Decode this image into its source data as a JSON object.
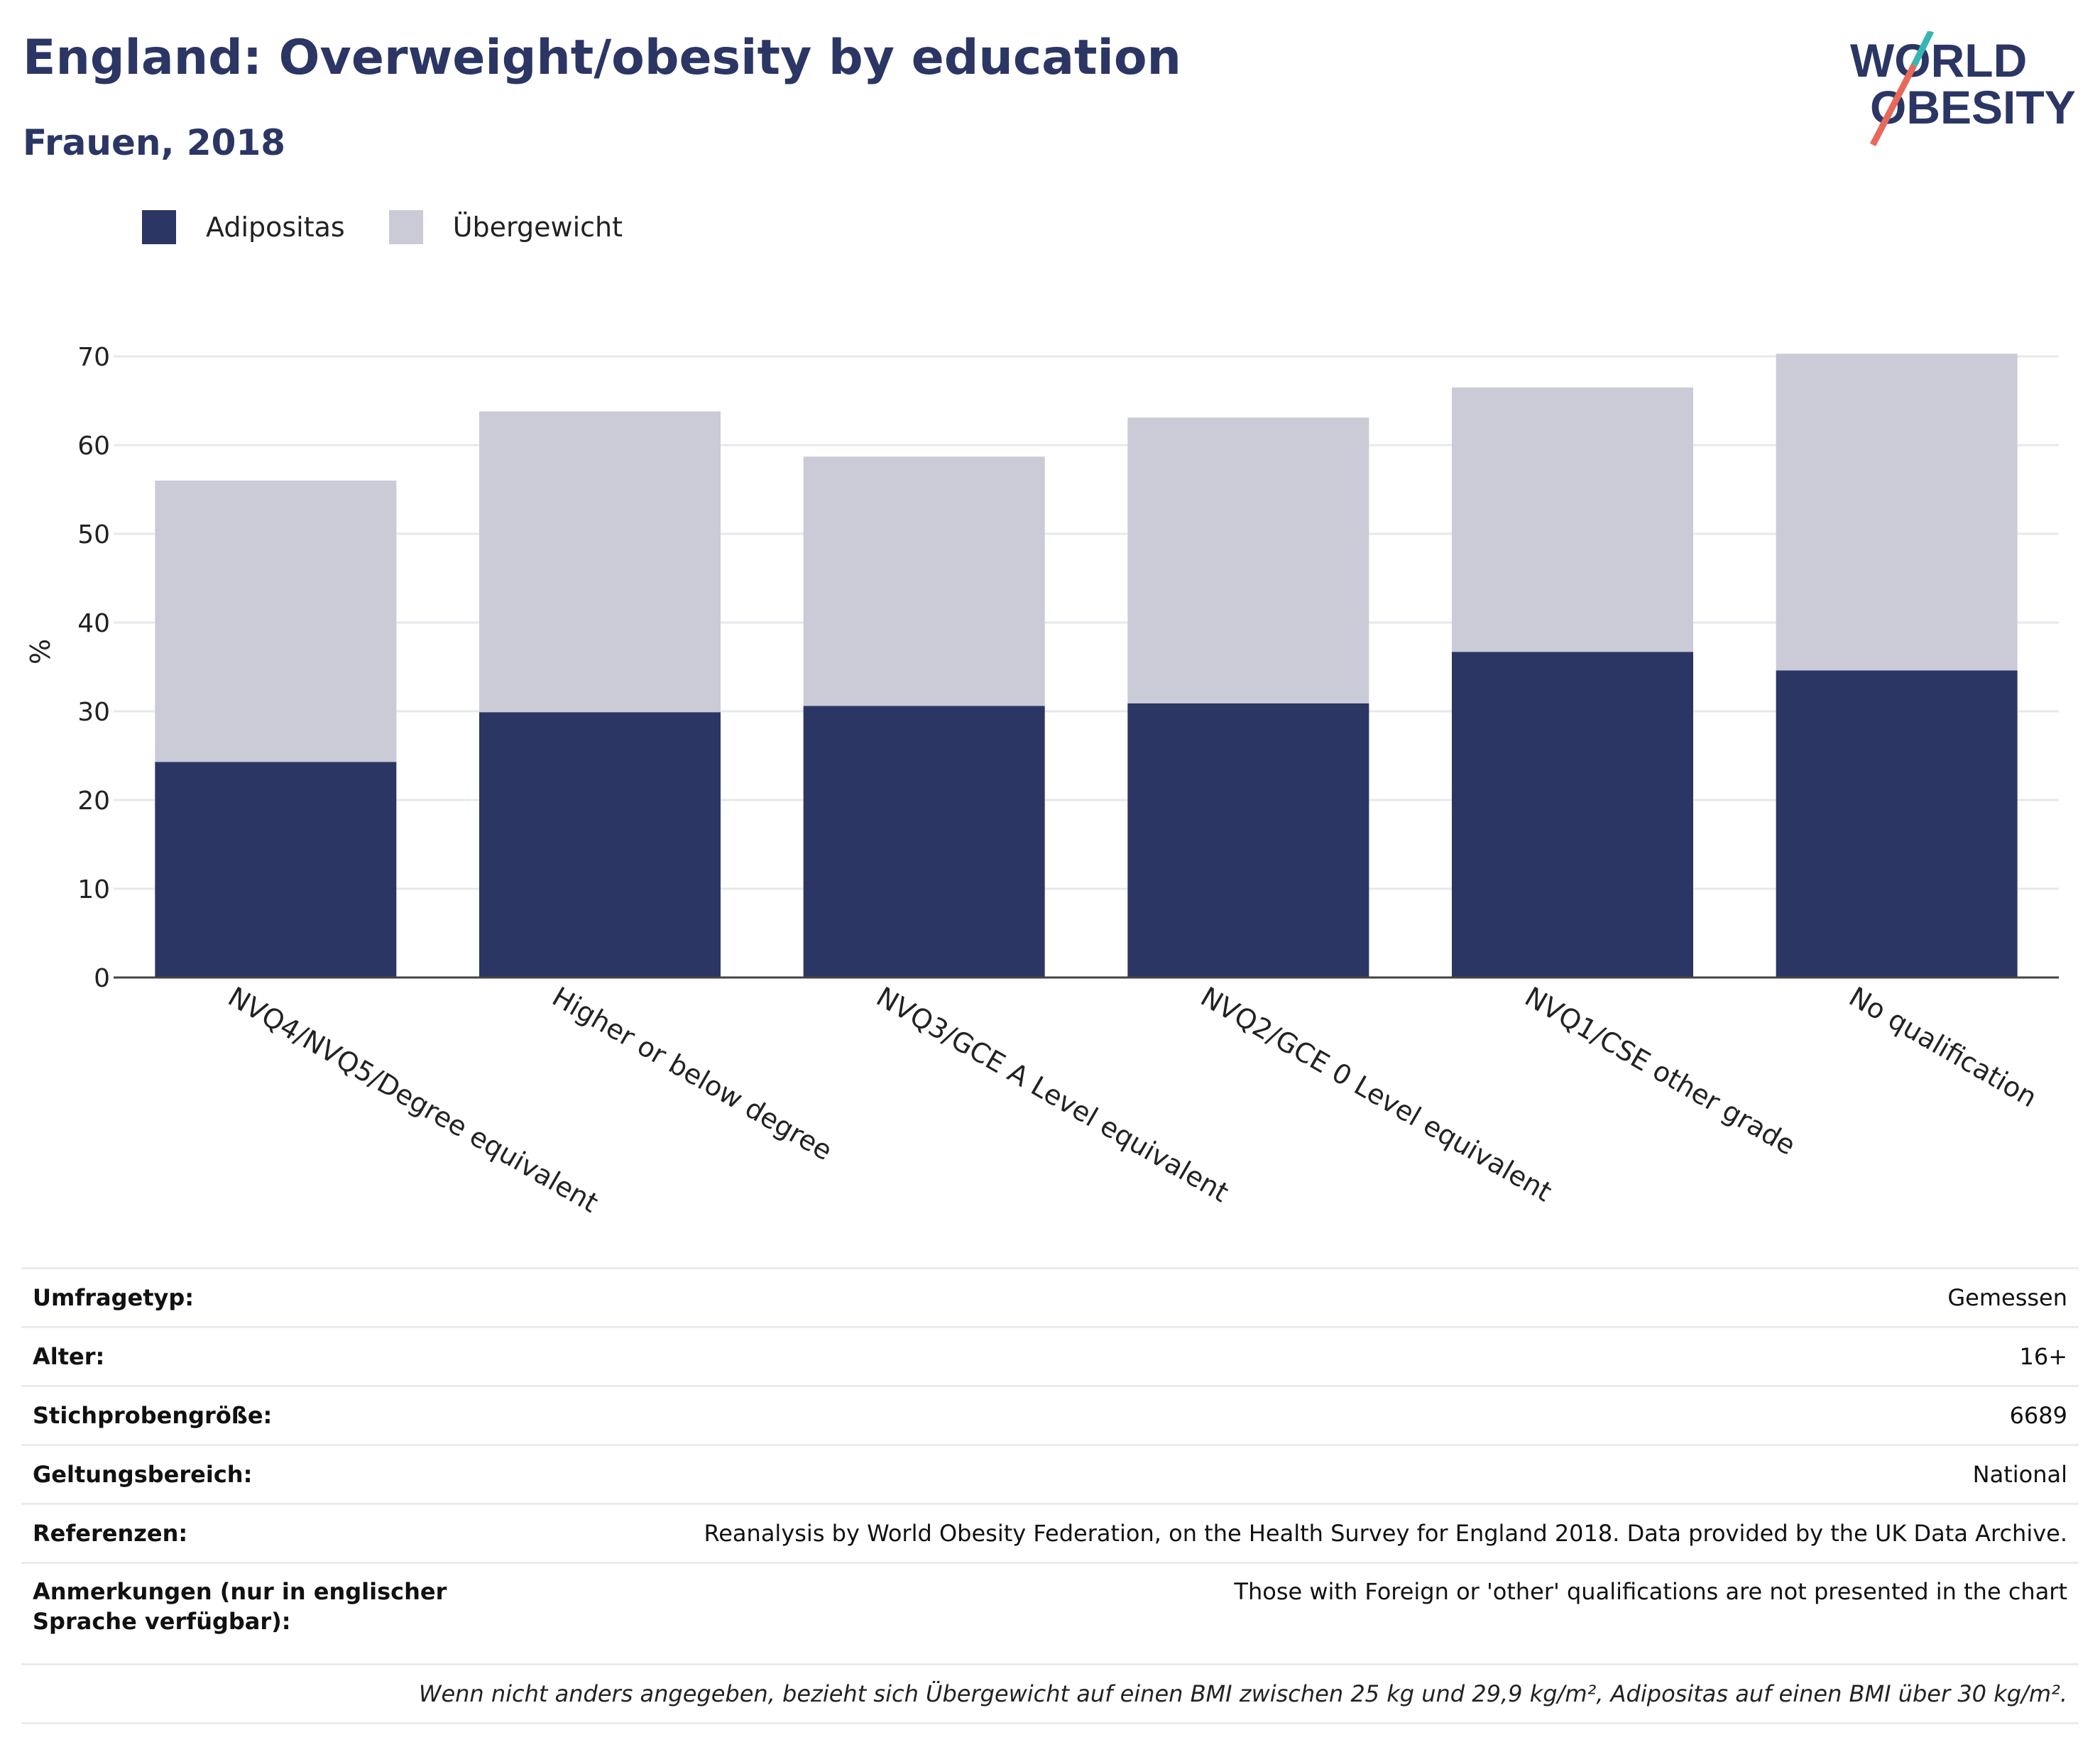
{
  "header": {
    "title": "England: Overweight/obesity by education",
    "subtitle": "Frauen, 2018"
  },
  "logo": {
    "line1": "WORLD",
    "line2": "OBESITY"
  },
  "legend": [
    {
      "label": "Adipositas",
      "color": "#2b3664"
    },
    {
      "label": "Übergewicht",
      "color": "#cacbd7"
    }
  ],
  "chart_data": {
    "type": "bar",
    "stacked": true,
    "categories": [
      "NVQ4/NVQ5/Degree equivalent",
      "Higher or below degree",
      "NVQ3/GCE A Level equivalent",
      "NVQ2/GCE 0 Level equivalent",
      "NVQ1/CSE other grade",
      "No qualification"
    ],
    "series": [
      {
        "name": "Adipositas",
        "color": "#2b3664",
        "values": [
          24.3,
          29.9,
          30.6,
          30.9,
          36.7,
          34.6
        ]
      },
      {
        "name": "Übergewicht",
        "color": "#cacbd7",
        "values": [
          31.7,
          33.9,
          28.1,
          32.2,
          29.8,
          35.7
        ]
      }
    ],
    "title": "England: Overweight/obesity by education",
    "subtitle": "Frauen, 2018",
    "xlabel": "",
    "ylabel": "%",
    "ylim": [
      0,
      70
    ],
    "yticks": [
      0,
      10,
      20,
      30,
      40,
      50,
      60,
      70
    ],
    "grid": true,
    "legend_position": "top-left"
  },
  "meta": {
    "rows": [
      {
        "key": "Umfragetyp:",
        "value": "Gemessen"
      },
      {
        "key": "Alter:",
        "value": "16+"
      },
      {
        "key": "Stichprobengröße:",
        "value": "6689"
      },
      {
        "key": "Geltungsbereich:",
        "value": "National"
      },
      {
        "key": "Referenzen:",
        "value": "Reanalysis by World Obesity Federation, on the Health Survey for England 2018. Data provided by the UK Data Archive."
      },
      {
        "key": "Anmerkungen (nur in englischer Sprache verfügbar):",
        "value": "Those with Foreign or 'other' qualifications are not presented in the chart"
      }
    ],
    "footnote": "Wenn nicht anders angegeben, bezieht sich Übergewicht auf einen BMI zwischen 25 kg und 29,9 kg/m², Adipositas auf einen BMI über 30 kg/m²."
  }
}
